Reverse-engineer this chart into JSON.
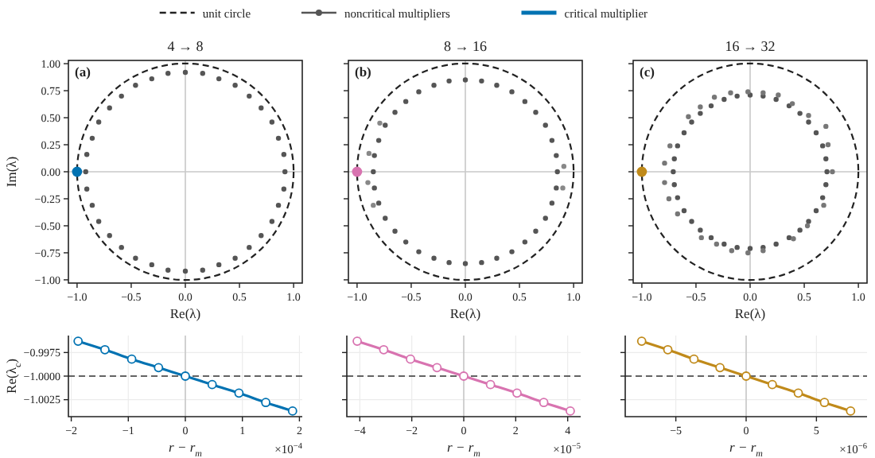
{
  "chart_data": [
    {
      "type": "scatter",
      "title": "4 → 8",
      "xlabel": "Re(λ)",
      "ylabel": "Im(λ)",
      "xlim": [
        -1.08,
        1.08
      ],
      "ylim": [
        -1.03,
        1.03
      ],
      "xticks": [
        {
          "value": -1,
          "label": "−1.0"
        },
        {
          "value": -0.5,
          "label": "−0.5"
        },
        {
          "value": 0,
          "label": "0.0"
        },
        {
          "value": 0.5,
          "label": "0.5"
        },
        {
          "value": 1,
          "label": "1.0"
        }
      ],
      "yticks": [
        {
          "value": -1,
          "label": "−1.00"
        },
        {
          "value": -0.75,
          "label": "−0.75"
        },
        {
          "value": -0.5,
          "label": "−0.50"
        },
        {
          "value": -0.25,
          "label": "−0.25"
        },
        {
          "value": 0,
          "label": "0.00"
        },
        {
          "value": 0.25,
          "label": "0.25"
        },
        {
          "value": 0.5,
          "label": "0.50"
        },
        {
          "value": 0.75,
          "label": "0.75"
        },
        {
          "value": 1,
          "label": "1.00"
        }
      ],
      "legend": "top",
      "annotations": [
        "(a)",
        "unit circle"
      ],
      "ref_lines": [
        {
          "axis": "x",
          "value": 0,
          "color": "#c8c8c8"
        },
        {
          "axis": "y",
          "value": 0,
          "color": "#c8c8c8"
        }
      ],
      "series": [
        {
          "name": "noncritical multipliers",
          "color": "#555555",
          "line_style": "solid",
          "marker": "circle",
          "x": [
            0.92,
            0.91,
            0.86,
            0.8,
            0.7,
            0.59,
            0.46,
            0.31,
            0.16,
            0,
            -0.16,
            -0.31,
            -0.46,
            -0.59,
            -0.7,
            -0.8,
            -0.86,
            -0.91,
            -0.92,
            -0.91,
            -0.86,
            -0.8,
            -0.7,
            -0.59,
            -0.46,
            -0.31,
            -0.16,
            0,
            0.16,
            0.31,
            0.46,
            0.59,
            0.7,
            0.8,
            0.86,
            0.91
          ],
          "values": [
            0,
            0.16,
            0.31,
            0.46,
            0.59,
            0.7,
            0.8,
            0.86,
            0.91,
            0.92,
            0.91,
            0.86,
            0.8,
            0.7,
            0.59,
            0.46,
            0.31,
            0.16,
            0,
            -0.16,
            -0.31,
            -0.46,
            -0.59,
            -0.7,
            -0.8,
            -0.86,
            -0.91,
            -0.92,
            -0.91,
            -0.86,
            -0.8,
            -0.7,
            -0.59,
            -0.46,
            -0.31,
            -0.16
          ]
        },
        {
          "name": "critical multiplier",
          "color": "#0072b2",
          "marker": "circle",
          "x": [
            -1
          ],
          "values": [
            0
          ]
        }
      ]
    },
    {
      "type": "scatter",
      "title": "8 → 16",
      "xlabel": "Re(λ)",
      "xlim": [
        -1.08,
        1.08
      ],
      "ylim": [
        -1.03,
        1.03
      ],
      "tick_labels": "x",
      "xticks": [
        {
          "value": -1,
          "label": "−1.0"
        },
        {
          "value": -0.5,
          "label": "−0.5"
        },
        {
          "value": 0,
          "label": "0.0"
        },
        {
          "value": 0.5,
          "label": "0.5"
        },
        {
          "value": 1,
          "label": "1.0"
        }
      ],
      "yticks": [
        {
          "value": -1,
          "label": null
        },
        {
          "value": -0.75,
          "label": null
        },
        {
          "value": -0.5,
          "label": null
        },
        {
          "value": -0.25,
          "label": null
        },
        {
          "value": 0,
          "label": null
        },
        {
          "value": 0.25,
          "label": null
        },
        {
          "value": 0.5,
          "label": null
        },
        {
          "value": 0.75,
          "label": null
        },
        {
          "value": 1,
          "label": null
        }
      ],
      "annotations": [
        "(b)"
      ],
      "ref_lines": [
        {
          "axis": "x",
          "value": 0,
          "color": "#c8c8c8"
        },
        {
          "axis": "y",
          "value": 0,
          "color": "#c8c8c8"
        }
      ],
      "series": [
        {
          "color": "#555555",
          "marker": "circle",
          "x": [
            0.85,
            0.84,
            0.8,
            0.74,
            0.65,
            0.55,
            0.43,
            0.29,
            0.15,
            0,
            -0.15,
            -0.29,
            -0.43,
            -0.55,
            -0.65,
            -0.74,
            -0.8,
            -0.84,
            -0.85,
            -0.84,
            -0.8,
            -0.74,
            -0.65,
            -0.55,
            -0.43,
            -0.29,
            -0.15,
            0,
            0.15,
            0.29,
            0.43,
            0.55,
            0.65,
            0.74,
            0.8,
            0.84
          ],
          "values": [
            0,
            0.15,
            0.29,
            0.43,
            0.55,
            0.65,
            0.74,
            0.8,
            0.84,
            0.85,
            0.84,
            0.8,
            0.74,
            0.65,
            0.55,
            0.43,
            0.29,
            0.15,
            0,
            -0.15,
            -0.29,
            -0.43,
            -0.55,
            -0.65,
            -0.74,
            -0.8,
            -0.84,
            -0.85,
            -0.84,
            -0.8,
            -0.74,
            -0.65,
            -0.55,
            -0.43,
            -0.29,
            -0.15
          ]
        },
        {
          "color": "#888888",
          "marker": "circle",
          "x": [
            -0.89,
            -0.79,
            -0.9,
            -0.85,
            0.91,
            0.9
          ],
          "values": [
            0.17,
            0.45,
            -0.1,
            -0.31,
            0.05,
            -0.15
          ]
        },
        {
          "color": "#d873b0",
          "marker": "circle",
          "x": [
            -1
          ],
          "values": [
            0
          ]
        }
      ]
    },
    {
      "type": "scatter",
      "title": "16 → 32",
      "xlabel": "Re(λ)",
      "xlim": [
        -1.08,
        1.08
      ],
      "ylim": [
        -1.03,
        1.03
      ],
      "tick_labels": "x",
      "xticks": [
        {
          "value": -1,
          "label": "−1.0"
        },
        {
          "value": -0.5,
          "label": "−0.5"
        },
        {
          "value": 0,
          "label": "0.0"
        },
        {
          "value": 0.5,
          "label": "0.5"
        },
        {
          "value": 1,
          "label": "1.0"
        }
      ],
      "yticks": [
        {
          "value": -1,
          "label": null
        },
        {
          "value": -0.75,
          "label": null
        },
        {
          "value": -0.5,
          "label": null
        },
        {
          "value": -0.25,
          "label": null
        },
        {
          "value": 0,
          "label": null
        },
        {
          "value": 0.25,
          "label": null
        },
        {
          "value": 0.5,
          "label": null
        },
        {
          "value": 0.75,
          "label": null
        },
        {
          "value": 1,
          "label": null
        }
      ],
      "annotations": [
        "(c)"
      ],
      "ref_lines": [
        {
          "axis": "x",
          "value": 0,
          "color": "#c8c8c8"
        },
        {
          "axis": "y",
          "value": 0,
          "color": "#c8c8c8"
        }
      ],
      "series": [
        {
          "color": "#555555",
          "marker": "circle",
          "x": [
            0.71,
            0.7,
            0.67,
            0.61,
            0.54,
            0.46,
            0.36,
            0.24,
            0.12,
            0,
            -0.12,
            -0.24,
            -0.36,
            -0.46,
            -0.54,
            -0.61,
            -0.67,
            -0.7,
            -0.71,
            -0.7,
            -0.67,
            -0.61,
            -0.54,
            -0.46,
            -0.36,
            -0.24,
            -0.12,
            0,
            0.12,
            0.24,
            0.36,
            0.46,
            0.54,
            0.61,
            0.67,
            0.7
          ],
          "values": [
            0,
            0.12,
            0.24,
            0.36,
            0.46,
            0.54,
            0.61,
            0.67,
            0.7,
            0.71,
            0.7,
            0.67,
            0.61,
            0.54,
            0.46,
            0.36,
            0.24,
            0.12,
            0,
            -0.12,
            -0.24,
            -0.36,
            -0.46,
            -0.54,
            -0.61,
            -0.67,
            -0.7,
            -0.71,
            -0.7,
            -0.67,
            -0.61,
            -0.54,
            -0.46,
            -0.36,
            -0.24,
            -0.12
          ]
        },
        {
          "color": "#777777",
          "marker": "circle",
          "x": [
            -0.33,
            -0.18,
            -0.02,
            0.12,
            0.26,
            0.39,
            0.54,
            -0.46,
            -0.57,
            -0.74,
            -0.79,
            -0.79,
            -0.75,
            -0.67,
            -0.45,
            -0.31,
            -0.17,
            -0.02,
            0.12,
            0.4,
            0.53,
            0.68,
            0.72,
            0.76,
            0.7
          ],
          "values": [
            0.69,
            0.73,
            0.74,
            0.73,
            0.71,
            0.63,
            0.52,
            0.6,
            0.51,
            0.24,
            0.08,
            -0.1,
            -0.25,
            -0.39,
            -0.61,
            -0.67,
            -0.73,
            -0.75,
            -0.73,
            -0.62,
            -0.5,
            -0.31,
            0.25,
            0,
            0.42
          ]
        },
        {
          "color": "#c08a1a",
          "marker": "circle",
          "x": [
            -1
          ],
          "values": [
            0
          ]
        }
      ]
    },
    {
      "type": "line",
      "xlabel": "r − r$_{m}$",
      "ylabel": "Re(λ$_{c}$)",
      "xlim": [
        -2.05,
        2.05
      ],
      "ylim": [
        -1.0043,
        -0.9957
      ],
      "grid": true,
      "marker": "circle",
      "xticks": [
        {
          "value": -2,
          "label": "−2"
        },
        {
          "value": -1,
          "label": "−1"
        },
        0,
        1,
        2
      ],
      "yticks": [
        {
          "value": -0.9975,
          "label": "−0.9975"
        },
        {
          "value": -1,
          "label": "−1.0000"
        },
        {
          "value": -1.0025,
          "label": "−1.0025"
        }
      ],
      "annotations": [
        "×10$^{−4}$"
      ],
      "ref_lines": [
        {
          "axis": "x",
          "value": 0,
          "color": "#c8c8c8"
        },
        {
          "axis": "y",
          "value": -1,
          "color": "#333333",
          "line_style": "dashed"
        }
      ],
      "x": [
        -1.88,
        -1.41,
        -0.94,
        -0.47,
        0,
        0.47,
        0.94,
        1.41,
        1.88
      ],
      "series": [
        {
          "color": "#0072b2",
          "values": [
            -0.9963,
            -0.9972,
            -0.9982,
            -0.9991,
            -1.0,
            -1.0009,
            -1.0018,
            -1.0028,
            -1.0037
          ]
        }
      ]
    },
    {
      "type": "line",
      "xlabel": "r − r$_{m}$",
      "xlim": [
        -4.5,
        4.5
      ],
      "ylim": [
        -1.0043,
        -0.9957
      ],
      "grid": true,
      "marker": "circle",
      "tick_labels": "x",
      "xticks": [
        {
          "value": -4,
          "label": "−4"
        },
        {
          "value": -2,
          "label": "−2"
        },
        0,
        2,
        4
      ],
      "yticks": [
        {
          "value": -0.9975,
          "label": null
        },
        {
          "value": -1,
          "label": null
        },
        {
          "value": -1.0025,
          "label": null
        }
      ],
      "annotations": [
        "×10$^{−5}$"
      ],
      "ref_lines": [
        {
          "axis": "x",
          "value": 0,
          "color": "#c8c8c8"
        },
        {
          "axis": "y",
          "value": -1,
          "color": "#333333",
          "line_style": "dashed"
        }
      ],
      "x": [
        -4.1,
        -3.08,
        -2.05,
        -1.03,
        0,
        1.03,
        2.05,
        3.08,
        4.1
      ],
      "series": [
        {
          "color": "#d873b0",
          "values": [
            -0.9963,
            -0.9972,
            -0.9982,
            -0.9991,
            -1.0,
            -1.0009,
            -1.0018,
            -1.0028,
            -1.0037
          ]
        }
      ]
    },
    {
      "type": "line",
      "xlabel": "r − r$_{m}$",
      "xlim": [
        -8.6,
        8.6
      ],
      "ylim": [
        -1.0043,
        -0.9957
      ],
      "grid": true,
      "marker": "circle",
      "tick_labels": "x",
      "xticks": [
        {
          "value": -5,
          "label": "−5"
        },
        0,
        5
      ],
      "yticks": [
        {
          "value": -0.9975,
          "label": null
        },
        {
          "value": -1,
          "label": null
        },
        {
          "value": -1.0025,
          "label": null
        }
      ],
      "annotations": [
        "×10$^{−6}$"
      ],
      "ref_lines": [
        {
          "axis": "x",
          "value": 0,
          "color": "#c8c8c8"
        },
        {
          "axis": "y",
          "value": -1,
          "color": "#333333",
          "line_style": "dashed"
        }
      ],
      "x": [
        -7.43,
        -5.57,
        -3.71,
        -1.86,
        0,
        1.86,
        3.71,
        5.57,
        7.43
      ],
      "series": [
        {
          "color": "#c08a1a",
          "values": [
            -0.9963,
            -0.9972,
            -0.9982,
            -0.9991,
            -1.0,
            -1.0009,
            -1.0018,
            -1.0028,
            -1.0037
          ]
        }
      ]
    }
  ]
}
